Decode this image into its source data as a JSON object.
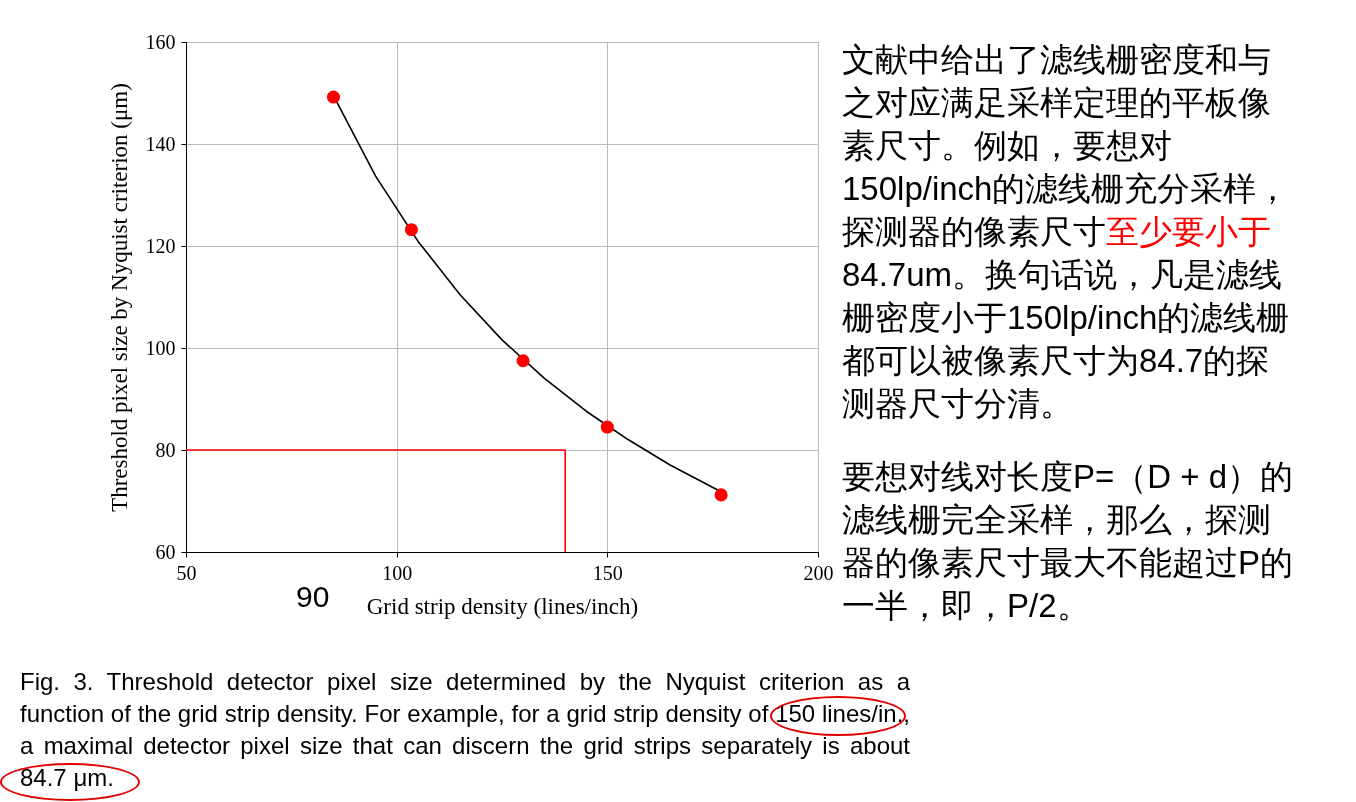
{
  "chart_data": {
    "type": "scatter",
    "xlabel": "Grid strip density (lines/inch)",
    "ylabel": "Threshold pixel size by Nyquist criterion (μm)",
    "xlim": [
      50,
      200
    ],
    "xticks": [
      50,
      100,
      150,
      200
    ],
    "ylim": [
      60,
      160
    ],
    "yticks": [
      60,
      80,
      100,
      120,
      140,
      160
    ],
    "grid": true,
    "series": [
      {
        "type": "line",
        "color": "#000000",
        "x": [
          85,
          95,
          105,
          115,
          125,
          135,
          145,
          155,
          165,
          177
        ],
        "values": [
          149.5,
          133.7,
          121.0,
          110.5,
          101.6,
          94.1,
          87.6,
          82.0,
          77.0,
          71.8
        ]
      },
      {
        "color": "#ff0000",
        "x": [
          85,
          103.5,
          130,
          150,
          177
        ],
        "values": [
          149.2,
          123.2,
          97.5,
          84.5,
          71.2
        ]
      },
      {
        "type": "line",
        "color": "#ff0000",
        "x": [
          50,
          140,
          140
        ],
        "values": [
          80,
          80,
          60
        ]
      }
    ],
    "annotations": [
      "90",
      "Fig. 3. Threshold detector pixel size determined by the Nyquist criterion as a function of the grid strip density. For example, for a grid strip density of 150 lines/in., a maximal detector pixel size that can discern the grid strips separately is about 84.7 μm.",
      "文献中给出了滤线栅密度和与之对应满足采样定理的平板像素尺寸。例如，要想对150lp/inch的滤线栅充分采样，探测器的像素尺寸",
      "至少要小于",
      "84.7um。换句话说，凡是滤线栅密度小于150lp/inch的滤线栅都可以被像素尺寸为84.7的探测器尺寸分清。",
      "要想对线对长度P=（D + d）的滤线栅完全采样，那么，探测器的像素尺寸最大不能超过P的一半，即，P/2。"
    ]
  }
}
